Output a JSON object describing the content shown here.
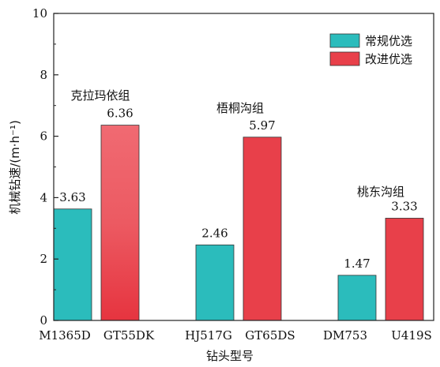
{
  "chart_data": {
    "type": "bar",
    "ylabel": "机械钻速/(m·h⁻¹)",
    "xlabel": "钻头型号",
    "ylim": [
      0,
      10
    ],
    "yticks": [
      0,
      2,
      4,
      6,
      8,
      10
    ],
    "legend_position": "top-right",
    "groups": [
      {
        "name": "克拉玛依组",
        "bars": [
          {
            "label": "M1365D",
            "series": "常规优选",
            "value": 3.63,
            "value_label": "3.63"
          },
          {
            "label": "GT55DK",
            "series": "改进优选",
            "value": 6.36,
            "value_label": "6.36"
          }
        ]
      },
      {
        "name": "梧桐沟组",
        "bars": [
          {
            "label": "HJ517G",
            "series": "常规优选",
            "value": 2.46,
            "value_label": "2.46"
          },
          {
            "label": "GT65DS",
            "series": "改进优选",
            "value": 5.97,
            "value_label": "5.97"
          }
        ]
      },
      {
        "name": "桃东沟组",
        "bars": [
          {
            "label": "DM753",
            "series": "常规优选",
            "value": 1.47,
            "value_label": "1.47"
          },
          {
            "label": "U419S",
            "series": "改进优选",
            "value": 3.33,
            "value_label": "3.33"
          }
        ]
      }
    ],
    "series": [
      {
        "name": "常规优选",
        "color": "#2bbcbc"
      },
      {
        "name": "改进优选",
        "color": "#e8404a"
      }
    ]
  }
}
